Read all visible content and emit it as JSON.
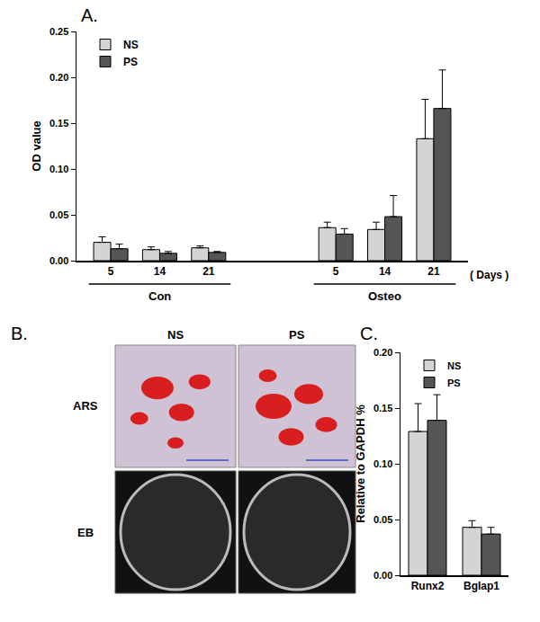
{
  "chart_data": [
    {
      "type": "bar",
      "title": "A.",
      "ylabel": "OD value",
      "xlabel": "( Days )",
      "categories": [
        "5",
        "14",
        "21",
        "5",
        "14",
        "21"
      ],
      "x_groups": [
        {
          "label": "Con",
          "count": 3
        },
        {
          "label": "Osteo",
          "count": 3
        }
      ],
      "series": [
        {
          "name": "NS",
          "color": "#d4d4d4",
          "values": [
            0.02,
            0.012,
            0.014,
            0.036,
            0.034,
            0.133
          ],
          "errors": [
            0.006,
            0.003,
            0.002,
            0.006,
            0.008,
            0.043
          ]
        },
        {
          "name": "PS",
          "color": "#555555",
          "values": [
            0.013,
            0.008,
            0.009,
            0.029,
            0.048,
            0.166
          ],
          "errors": [
            0.005,
            0.002,
            0.001,
            0.006,
            0.023,
            0.042
          ]
        }
      ],
      "ylim": [
        0,
        0.25
      ],
      "yticks": [
        {
          "value": 0,
          "label": "0.00"
        },
        {
          "value": 0.05,
          "label": "0.05"
        },
        {
          "value": 0.1,
          "label": "0.10"
        },
        {
          "value": 0.15,
          "label": "0.15"
        },
        {
          "value": 0.2,
          "label": "0.20"
        },
        {
          "value": 0.25,
          "label": "0.25"
        }
      ],
      "grid": false,
      "legend": "top-left"
    },
    {
      "type": "bar",
      "title": "C.",
      "ylabel": "Relative to GAPDH %",
      "categories": [
        "Runx2",
        "Bglap1"
      ],
      "series": [
        {
          "name": "NS",
          "color": "#d4d4d4",
          "values": [
            0.129,
            0.043
          ],
          "errors": [
            0.025,
            0.006
          ]
        },
        {
          "name": "PS",
          "color": "#555555",
          "values": [
            0.139,
            0.037
          ],
          "errors": [
            0.023,
            0.006
          ]
        }
      ],
      "ylim": [
        0,
        0.2
      ],
      "yticks": [
        {
          "value": 0,
          "label": "0.00"
        },
        {
          "value": 0.05,
          "label": "0.05"
        },
        {
          "value": 0.1,
          "label": "0.10"
        },
        {
          "value": 0.15,
          "label": "0.15"
        },
        {
          "value": 0.2,
          "label": "0.20"
        }
      ],
      "grid": false,
      "legend": "top-left"
    }
  ],
  "images": {
    "title": "B.",
    "columns": [
      "NS",
      "PS"
    ],
    "rows": [
      "ARS",
      "EB"
    ]
  }
}
